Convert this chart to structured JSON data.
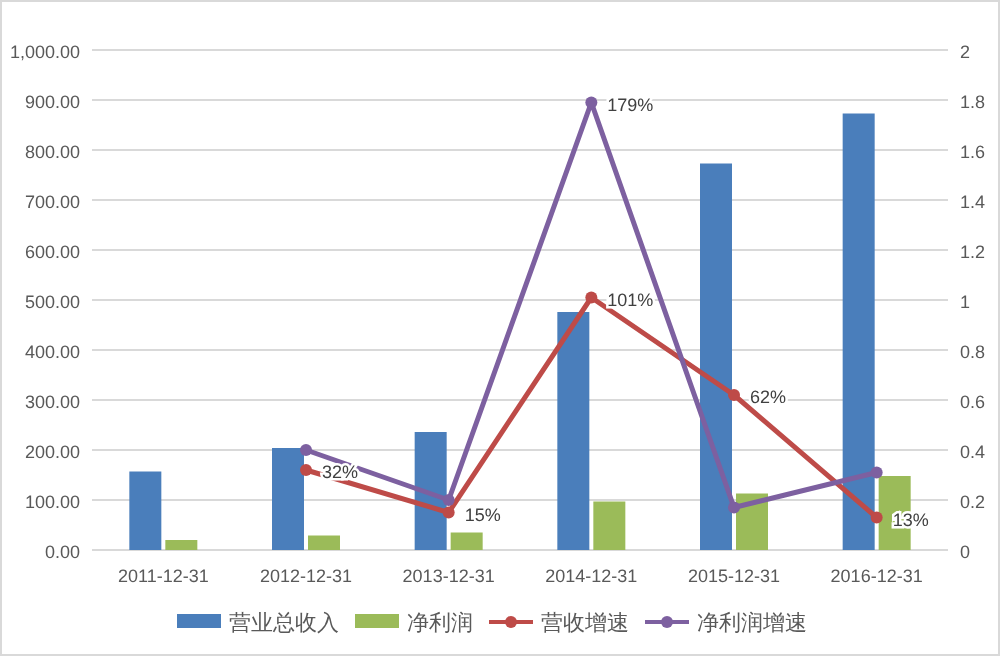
{
  "chart_data": {
    "type": "bar",
    "categories": [
      "2011-12-31",
      "2012-12-31",
      "2013-12-31",
      "2014-12-31",
      "2015-12-31",
      "2016-12-31"
    ],
    "series": [
      {
        "name": "营业总收入",
        "color": "#4a7ebb",
        "values": [
          157,
          204,
          236,
          476,
          773,
          873
        ]
      },
      {
        "name": "净利润",
        "color": "#9bbb59",
        "values": [
          20,
          29,
          35,
          97,
          113,
          148
        ]
      },
      {
        "name": "营收增速",
        "type": "line",
        "axis": "y2",
        "color": "#be4b48",
        "values": [
          null,
          0.32,
          0.15,
          1.01,
          0.62,
          0.13
        ],
        "value_labels": [
          null,
          "32%",
          "15%",
          "101%",
          "62%",
          "13%"
        ]
      },
      {
        "name": "净利润增速",
        "type": "line",
        "axis": "y2",
        "color": "#7d60a0",
        "values": [
          null,
          0.4,
          0.2,
          1.79,
          0.17,
          0.31
        ],
        "value_labels": [
          null,
          null,
          null,
          "179%",
          null,
          null
        ]
      }
    ],
    "ylim": [
      0,
      1000
    ],
    "yticks": [
      {
        "value": 0,
        "label": "0.00"
      },
      {
        "value": 100,
        "label": "100.00"
      },
      {
        "value": 200,
        "label": "200.00"
      },
      {
        "value": 300,
        "label": "300.00"
      },
      {
        "value": 400,
        "label": "400.00"
      },
      {
        "value": 500,
        "label": "500.00"
      },
      {
        "value": 600,
        "label": "600.00"
      },
      {
        "value": 700,
        "label": "700.00"
      },
      {
        "value": 800,
        "label": "800.00"
      },
      {
        "value": 900,
        "label": "900.00"
      },
      {
        "value": 1000,
        "label": "1,000.00"
      }
    ],
    "y2lim": [
      0,
      2
    ],
    "y2ticks": [
      0,
      0.2,
      0.4,
      0.6,
      0.8,
      1,
      1.2,
      1.4,
      1.6,
      1.8,
      2
    ],
    "grid": "y",
    "legend": "bottom",
    "marker": "circle",
    "line_style": "solid"
  }
}
